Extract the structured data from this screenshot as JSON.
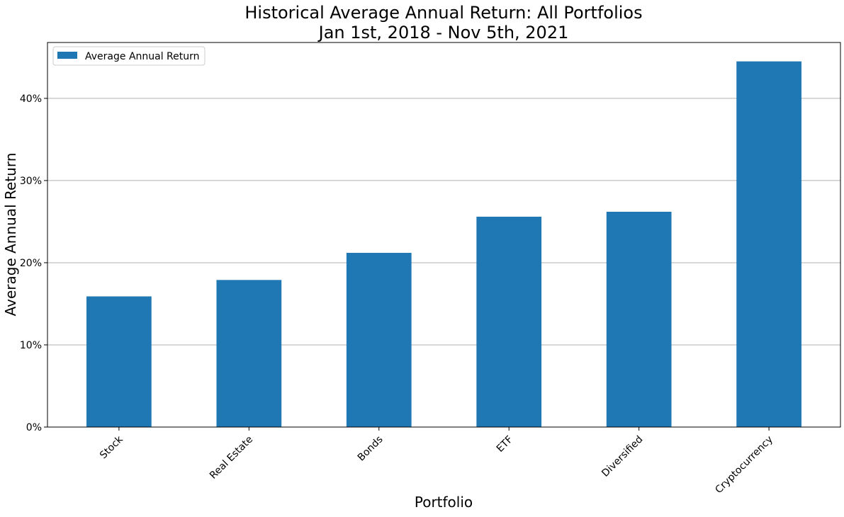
{
  "chart_data": {
    "type": "bar",
    "title": [
      "Historical Average Annual Return: All Portfolios",
      "Jan 1st, 2018 - Nov 5th, 2021"
    ],
    "xlabel": "Portfolio",
    "ylabel": "Average Annual Return",
    "categories": [
      "Stock",
      "Real Estate",
      "Bonds",
      "ETF",
      "Diversified",
      "Cryptocurrency"
    ],
    "series": [
      {
        "name": "Average Annual Return",
        "values": [
          0.159,
          0.179,
          0.212,
          0.256,
          0.262,
          0.445
        ],
        "color": "#1f77b4"
      }
    ],
    "ylim": [
      0,
      0.468
    ],
    "yticks": [
      0,
      0.1,
      0.2,
      0.3,
      0.4
    ],
    "ytick_labels": [
      "0%",
      "10%",
      "20%",
      "30%",
      "40%"
    ],
    "y_format": "percent",
    "grid": "y",
    "legend_position": "top-left",
    "xtick_rotation": -45
  }
}
